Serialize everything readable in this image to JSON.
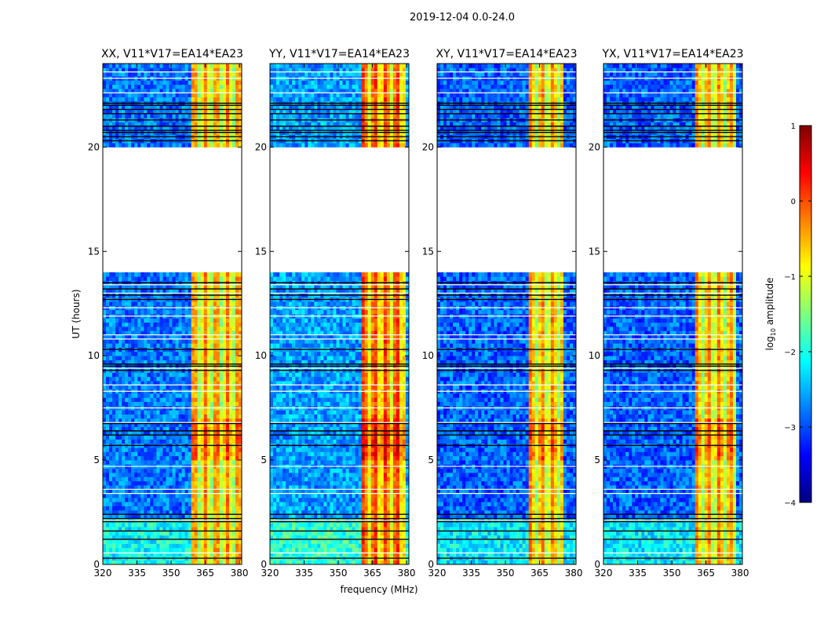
{
  "figure": {
    "suptitle": "2019-12-04 0.0-24.0",
    "xlabel": "frequency (MHz)",
    "ylabel": "UT (hours)"
  },
  "colorbar": {
    "label_prefix": "log",
    "label_sub": "10",
    "label_suffix": " amplitude",
    "ticks": [
      "1",
      "0",
      "−1",
      "−2",
      "−3",
      "−4"
    ],
    "min": -4,
    "max": 1,
    "colormap": "jet",
    "stops": [
      "#00007f",
      "#0000ff",
      "#007fff",
      "#00ffff",
      "#7fff7f",
      "#ffff00",
      "#ff7f00",
      "#ff0000",
      "#7f0000"
    ]
  },
  "chart_data": [
    {
      "type": "heatmap",
      "title": "XX, V11*V17=EA14*EA23",
      "xlabel": "frequency (MHz)",
      "ylabel": "UT (hours)",
      "xlim": [
        320,
        381
      ],
      "ylim": [
        0,
        24
      ],
      "xticks": [
        "320",
        "335",
        "350",
        "365",
        "380"
      ],
      "yticks": [
        "0",
        "5",
        "10",
        "15",
        "20"
      ],
      "value_scale": "log10 amplitude",
      "data_gaps_ut": [
        [
          14.0,
          20.0
        ]
      ],
      "rfi_band_mhz": [
        359,
        381
      ],
      "background_level": -2.8,
      "rfi_level": -0.8
    },
    {
      "type": "heatmap",
      "title": "YY, V11*V17=EA14*EA23",
      "xlabel": "frequency (MHz)",
      "ylabel": "UT (hours)",
      "xlim": [
        320,
        381
      ],
      "ylim": [
        0,
        24
      ],
      "xticks": [
        "320",
        "335",
        "350",
        "365",
        "380"
      ],
      "yticks": [
        "0",
        "5",
        "10",
        "15",
        "20"
      ],
      "value_scale": "log10 amplitude",
      "data_gaps_ut": [
        [
          14.0,
          20.0
        ]
      ],
      "rfi_band_mhz": [
        360,
        380
      ],
      "background_level": -2.6,
      "rfi_level": -0.4
    },
    {
      "type": "heatmap",
      "title": "XY, V11*V17=EA14*EA23",
      "xlabel": "frequency (MHz)",
      "ylabel": "UT (hours)",
      "xlim": [
        320,
        381
      ],
      "ylim": [
        0,
        24
      ],
      "xticks": [
        "320",
        "335",
        "350",
        "365",
        "380"
      ],
      "yticks": [
        "0",
        "5",
        "10",
        "15",
        "20"
      ],
      "value_scale": "log10 amplitude",
      "data_gaps_ut": [
        [
          14.0,
          20.0
        ]
      ],
      "rfi_band_mhz": [
        360,
        376
      ],
      "background_level": -2.9,
      "rfi_level": -0.8
    },
    {
      "type": "heatmap",
      "title": "YX, V11*V17=EA14*EA23",
      "xlabel": "frequency (MHz)",
      "ylabel": "UT (hours)",
      "xlim": [
        320,
        381
      ],
      "ylim": [
        0,
        24
      ],
      "xticks": [
        "320",
        "335",
        "350",
        "365",
        "380"
      ],
      "yticks": [
        "0",
        "5",
        "10",
        "15",
        "20"
      ],
      "value_scale": "log10 amplitude",
      "data_gaps_ut": [
        [
          14.0,
          20.0
        ]
      ],
      "rfi_band_mhz": [
        360,
        378
      ],
      "background_level": -2.9,
      "rfi_level": -0.8
    }
  ]
}
